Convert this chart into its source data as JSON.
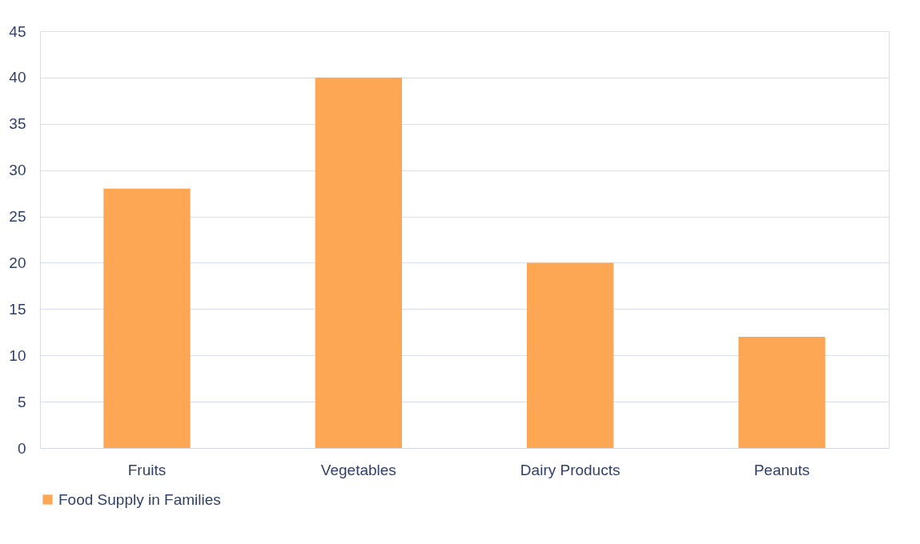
{
  "chart_data": {
    "type": "bar",
    "categories": [
      "Fruits",
      "Vegetables",
      "Dairy Products",
      "Peanuts"
    ],
    "series": [
      {
        "name": "Food Supply in Families",
        "color": "#fda653",
        "values": [
          28,
          40,
          20,
          12
        ]
      }
    ],
    "ylim": [
      0,
      45
    ],
    "yticks": [
      0,
      5,
      10,
      15,
      20,
      25,
      30,
      35,
      40,
      45
    ],
    "grid": "y",
    "legend": "bottom"
  }
}
